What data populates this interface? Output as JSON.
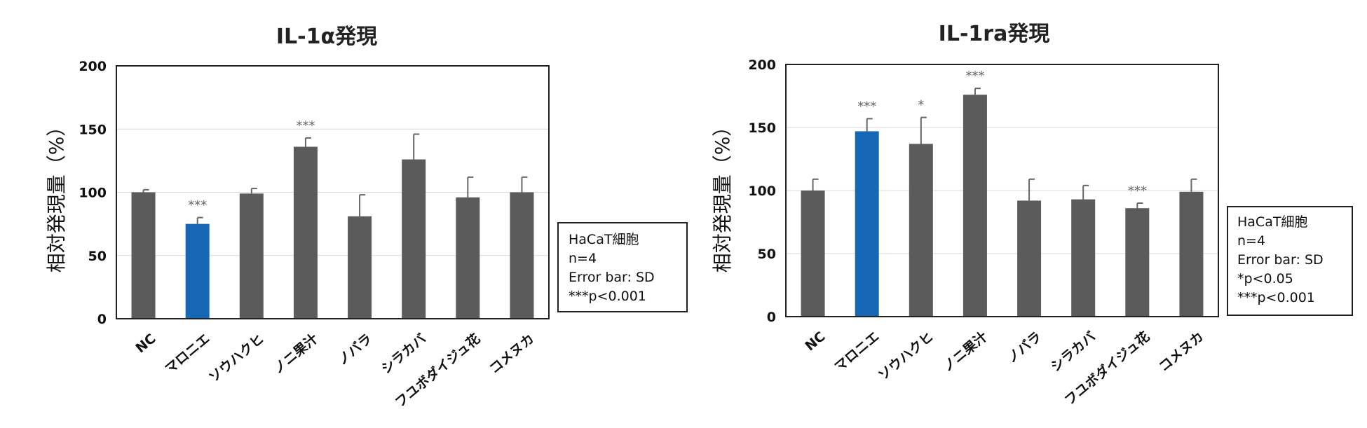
{
  "colors": {
    "bar": "#5b5b5b",
    "highlight": "#1668b4",
    "grid": "#d9d9d9",
    "frame": "#222222"
  },
  "chart_data": [
    {
      "type": "bar",
      "title": "IL-1α発現",
      "ylabel": "相対発現量（%）",
      "xlabel": "",
      "ylim": [
        0,
        200
      ],
      "yticks": [
        "0",
        "50",
        "100",
        "150",
        "200"
      ],
      "categories": [
        "NC",
        "マロニエ",
        "ソウハクヒ",
        "ノニ果汁",
        "ノバラ",
        "シラカバ",
        "フユボダイジュ花",
        "コメヌカ"
      ],
      "values": [
        100,
        75,
        99,
        136,
        81,
        126,
        96,
        100
      ],
      "errors": [
        2,
        5,
        4,
        7,
        17,
        20,
        16,
        12
      ],
      "significance": [
        "",
        "***",
        "",
        "***",
        "",
        "",
        "",
        ""
      ],
      "highlight_index": 1,
      "grid": true,
      "notes": [
        "HaCaT細胞",
        "n=4",
        "Error bar: SD",
        "***p<0.001"
      ]
    },
    {
      "type": "bar",
      "title": "IL-1ra発現",
      "ylabel": "相対発現量（%）",
      "xlabel": "",
      "ylim": [
        0,
        200
      ],
      "yticks": [
        "0",
        "50",
        "100",
        "150",
        "200"
      ],
      "categories": [
        "NC",
        "マロニエ",
        "ソウハクヒ",
        "ノニ果汁",
        "ノバラ",
        "シラカバ",
        "フユボダイジュ花",
        "コメヌカ"
      ],
      "values": [
        100,
        147,
        137,
        176,
        92,
        93,
        86,
        99
      ],
      "errors": [
        9,
        10,
        21,
        5,
        17,
        11,
        4,
        10
      ],
      "significance": [
        "",
        "***",
        "*",
        "***",
        "",
        "",
        "***",
        ""
      ],
      "highlight_index": 1,
      "grid": true,
      "notes": [
        "HaCaT細胞",
        "n=4",
        "Error bar: SD",
        "*p<0.05",
        "***p<0.001"
      ]
    }
  ]
}
